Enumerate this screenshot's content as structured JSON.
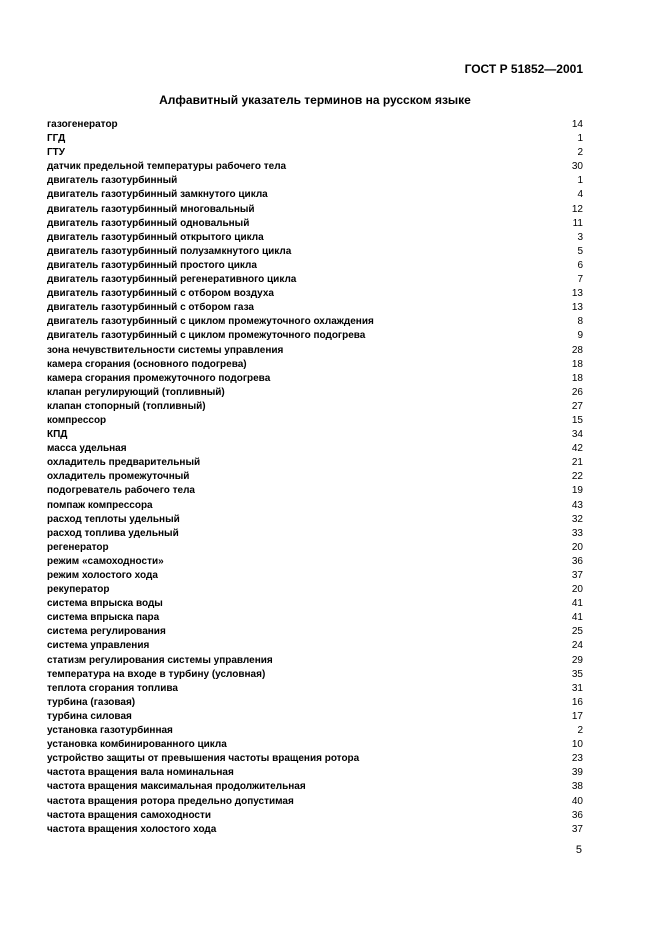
{
  "header": "ГОСТ Р 51852—2001",
  "title": "Алфавитный указатель терминов на русском языке",
  "entries": [
    {
      "term": "газогенератор",
      "ref": "14"
    },
    {
      "term": "ГГД",
      "ref": "1"
    },
    {
      "term": "ГТУ",
      "ref": "2"
    },
    {
      "term": "датчик предельной температуры рабочего тела",
      "ref": "30"
    },
    {
      "term": "двигатель газотурбинный",
      "ref": "1"
    },
    {
      "term": "двигатель газотурбинный замкнутого цикла",
      "ref": "4"
    },
    {
      "term": "двигатель газотурбинный многовальный",
      "ref": "12"
    },
    {
      "term": "двигатель газотурбинный одновальный",
      "ref": "11"
    },
    {
      "term": "двигатель газотурбинный открытого цикла",
      "ref": "3"
    },
    {
      "term": "двигатель газотурбинный полузамкнутого цикла",
      "ref": "5"
    },
    {
      "term": "двигатель газотурбинный простого цикла",
      "ref": "6"
    },
    {
      "term": "двигатель газотурбинный регенеративного цикла",
      "ref": "7"
    },
    {
      "term": "двигатель газотурбинный с отбором воздуха",
      "ref": "13"
    },
    {
      "term": "двигатель газотурбинный с отбором газа",
      "ref": "13"
    },
    {
      "term": "двигатель газотурбинный с циклом промежуточного охлаждения",
      "ref": "8"
    },
    {
      "term": "двигатель газотурбинный с циклом промежуточного подогрева",
      "ref": "9"
    },
    {
      "term": "зона нечувствительности системы управления",
      "ref": "28"
    },
    {
      "term": "камера сгорания (основного подогрева)",
      "ref": "18"
    },
    {
      "term": "камера сгорания промежуточного подогрева",
      "ref": "18"
    },
    {
      "term": "клапан регулирующий (топливный)",
      "ref": "26"
    },
    {
      "term": "клапан стопорный (топливный)",
      "ref": "27"
    },
    {
      "term": "компрессор",
      "ref": "15"
    },
    {
      "term": "КПД",
      "ref": "34"
    },
    {
      "term": "масса удельная",
      "ref": "42"
    },
    {
      "term": "охладитель предварительный",
      "ref": "21"
    },
    {
      "term": "охладитель промежуточный",
      "ref": "22"
    },
    {
      "term": "подогреватель рабочего тела",
      "ref": "19"
    },
    {
      "term": "помпаж компрессора",
      "ref": "43"
    },
    {
      "term": "расход теплоты удельный",
      "ref": "32"
    },
    {
      "term": "расход топлива удельный",
      "ref": "33"
    },
    {
      "term": "регенератор",
      "ref": "20"
    },
    {
      "term": "режим «самоходности»",
      "ref": "36"
    },
    {
      "term": "режим холостого хода",
      "ref": "37"
    },
    {
      "term": "рекуператор",
      "ref": "20"
    },
    {
      "term": "система впрыска воды",
      "ref": "41"
    },
    {
      "term": "система впрыска пара",
      "ref": "41"
    },
    {
      "term": "система регулирования",
      "ref": "25"
    },
    {
      "term": "система управления",
      "ref": "24"
    },
    {
      "term": "статизм регулирования системы управления",
      "ref": "29"
    },
    {
      "term": "температура на входе в турбину (условная)",
      "ref": "35"
    },
    {
      "term": "теплота сгорания топлива",
      "ref": "31"
    },
    {
      "term": "турбина (газовая)",
      "ref": "16"
    },
    {
      "term": "турбина силовая",
      "ref": "17"
    },
    {
      "term": "установка газотурбинная",
      "ref": "2"
    },
    {
      "term": "установка комбинированного цикла",
      "ref": "10"
    },
    {
      "term": "устройство защиты от превышения частоты вращения ротора",
      "ref": "23"
    },
    {
      "term": "частота вращения вала номинальная",
      "ref": "39"
    },
    {
      "term": "частота вращения максимальная продолжительная",
      "ref": "38"
    },
    {
      "term": "частота вращения ротора предельно допустимая",
      "ref": "40"
    },
    {
      "term": "частота вращения самоходности",
      "ref": "36"
    },
    {
      "term": "частота вращения холостого хода",
      "ref": "37"
    }
  ],
  "page_number": "5"
}
